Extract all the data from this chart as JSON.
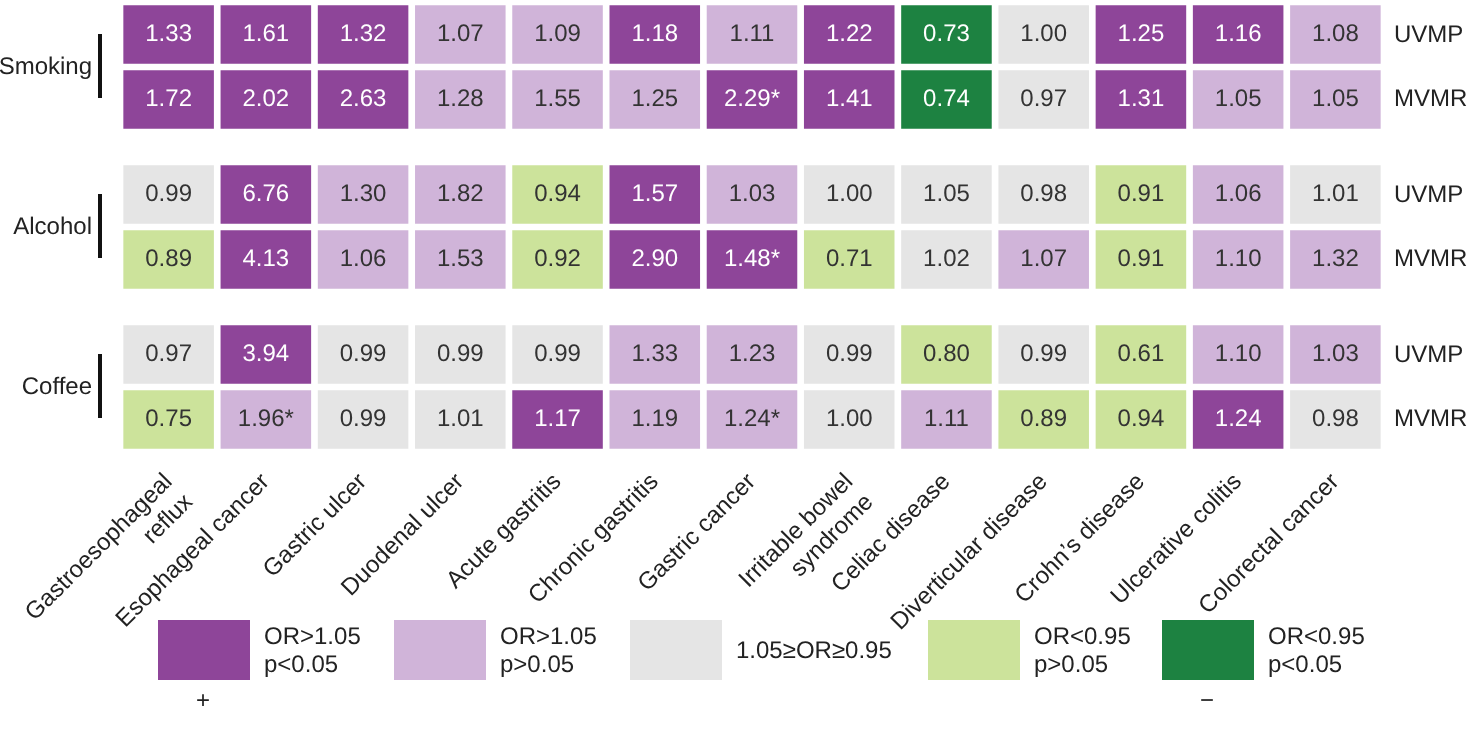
{
  "chart_data": [
    {
      "type": "heatmap",
      "ylabel": "Smoking",
      "tick_labels": "y",
      "categories": [
        null,
        null,
        null,
        null,
        null,
        null,
        null,
        null,
        null,
        null,
        null,
        null,
        null
      ],
      "y_categories": [
        "UVMP",
        "MVMR"
      ],
      "cells": [
        [
          1.33,
          1.61,
          1.32,
          1.07,
          1.09,
          1.18,
          1.11,
          1.22,
          0.73,
          1.0,
          1.25,
          1.16,
          1.08
        ],
        [
          1.72,
          2.02,
          2.63,
          1.28,
          1.55,
          1.25,
          2.29,
          1.41,
          0.74,
          0.97,
          1.31,
          1.05,
          1.05
        ]
      ],
      "cell_labels": [
        [
          "1.33",
          "1.61",
          "1.32",
          "1.07",
          "1.09",
          "1.18",
          "1.11",
          "1.22",
          "0.73",
          "1.00",
          "1.25",
          "1.16",
          "1.08"
        ],
        [
          "1.72",
          "2.02",
          "2.63",
          "1.28",
          "1.55",
          "1.25",
          "2.29*",
          "1.41",
          "0.74",
          "0.97",
          "1.31",
          "1.05",
          "1.05"
        ]
      ],
      "colors": [
        [
          "#8e4599",
          "#8e4599",
          "#8e4599",
          "#d0b4d9",
          "#d0b4d9",
          "#8e4599",
          "#d0b4d9",
          "#8e4599",
          "#1d8241",
          "#e5e5e5",
          "#8e4599",
          "#8e4599",
          "#d0b4d9"
        ],
        [
          "#8e4599",
          "#8e4599",
          "#8e4599",
          "#d0b4d9",
          "#d0b4d9",
          "#d0b4d9",
          "#8e4599",
          "#8e4599",
          "#1d8241",
          "#e5e5e5",
          "#8e4599",
          "#d0b4d9",
          "#d0b4d9"
        ]
      ]
    },
    {
      "type": "heatmap",
      "ylabel": "Alcohol",
      "tick_labels": "y",
      "categories": [
        null,
        null,
        null,
        null,
        null,
        null,
        null,
        null,
        null,
        null,
        null,
        null,
        null
      ],
      "y_categories": [
        "UVMP",
        "MVMR"
      ],
      "cells": [
        [
          0.99,
          6.76,
          1.3,
          1.82,
          0.94,
          1.57,
          1.03,
          1.0,
          1.05,
          0.98,
          0.91,
          1.06,
          1.01
        ],
        [
          0.89,
          4.13,
          1.06,
          1.53,
          0.92,
          2.9,
          1.48,
          0.71,
          1.02,
          1.07,
          0.91,
          1.1,
          1.32
        ]
      ],
      "cell_labels": [
        [
          "0.99",
          "6.76",
          "1.30",
          "1.82",
          "0.94",
          "1.57",
          "1.03",
          "1.00",
          "1.05",
          "0.98",
          "0.91",
          "1.06",
          "1.01"
        ],
        [
          "0.89",
          "4.13",
          "1.06",
          "1.53",
          "0.92",
          "2.90",
          "1.48*",
          "0.71",
          "1.02",
          "1.07",
          "0.91",
          "1.10",
          "1.32"
        ]
      ],
      "colors": [
        [
          "#e5e5e5",
          "#8e4599",
          "#d0b4d9",
          "#d0b4d9",
          "#cce39b",
          "#8e4599",
          "#d0b4d9",
          "#e5e5e5",
          "#e5e5e5",
          "#e5e5e5",
          "#cce39b",
          "#d0b4d9",
          "#e5e5e5"
        ],
        [
          "#cce39b",
          "#8e4599",
          "#d0b4d9",
          "#d0b4d9",
          "#cce39b",
          "#8e4599",
          "#8e4599",
          "#cce39b",
          "#e5e5e5",
          "#d0b4d9",
          "#cce39b",
          "#d0b4d9",
          "#d0b4d9"
        ]
      ]
    },
    {
      "type": "heatmap",
      "ylabel": "Coffee",
      "categories": [
        "Gastroesophageal reflux",
        "Esophageal cancer",
        "Gastric ulcer",
        "Duodenal ulcer",
        "Acute gastritis",
        "Chronic gastritis",
        "Gastric cancer",
        "Irritable bowel syndrome",
        "Celiac disease",
        "Diverticular disease",
        "Crohn’s disease",
        "Ulcerative colitis",
        "Colorectal cancer"
      ],
      "y_categories": [
        "UVMP",
        "MVMR"
      ],
      "cells": [
        [
          0.97,
          3.94,
          0.99,
          0.99,
          0.99,
          1.33,
          1.23,
          0.99,
          0.8,
          0.99,
          0.61,
          1.1,
          1.03
        ],
        [
          0.75,
          1.96,
          0.99,
          1.01,
          1.17,
          1.19,
          1.24,
          1.0,
          1.11,
          0.89,
          0.94,
          1.24,
          0.98
        ]
      ],
      "cell_labels": [
        [
          "0.97",
          "3.94",
          "0.99",
          "0.99",
          "0.99",
          "1.33",
          "1.23",
          "0.99",
          "0.80",
          "0.99",
          "0.61",
          "1.10",
          "1.03"
        ],
        [
          "0.75",
          "1.96*",
          "0.99",
          "1.01",
          "1.17",
          "1.19",
          "1.24*",
          "1.00",
          "1.11",
          "0.89",
          "0.94",
          "1.24",
          "0.98"
        ]
      ],
      "colors": [
        [
          "#e5e5e5",
          "#8e4599",
          "#e5e5e5",
          "#e5e5e5",
          "#e5e5e5",
          "#d0b4d9",
          "#d0b4d9",
          "#e5e5e5",
          "#cce39b",
          "#e5e5e5",
          "#cce39b",
          "#d0b4d9",
          "#d0b4d9"
        ],
        [
          "#cce39b",
          "#d0b4d9",
          "#e5e5e5",
          "#e5e5e5",
          "#8e4599",
          "#d0b4d9",
          "#d0b4d9",
          "#e5e5e5",
          "#d0b4d9",
          "#cce39b",
          "#cce39b",
          "#8e4599",
          "#e5e5e5"
        ]
      ]
    },
    {
      "type": "other",
      "categories": [
        "OR>1.05 p<0.05",
        "OR>1.05 p>0.05",
        "1.05≥OR≥0.95",
        "OR<0.95 p>0.05",
        "OR<0.95 p<0.05"
      ],
      "colors": [
        "#8e4599",
        "#d0b4d9",
        "#e5e5e5",
        "#cce39b",
        "#1d8241"
      ],
      "annotations": [
        "+",
        "−"
      ]
    }
  ]
}
